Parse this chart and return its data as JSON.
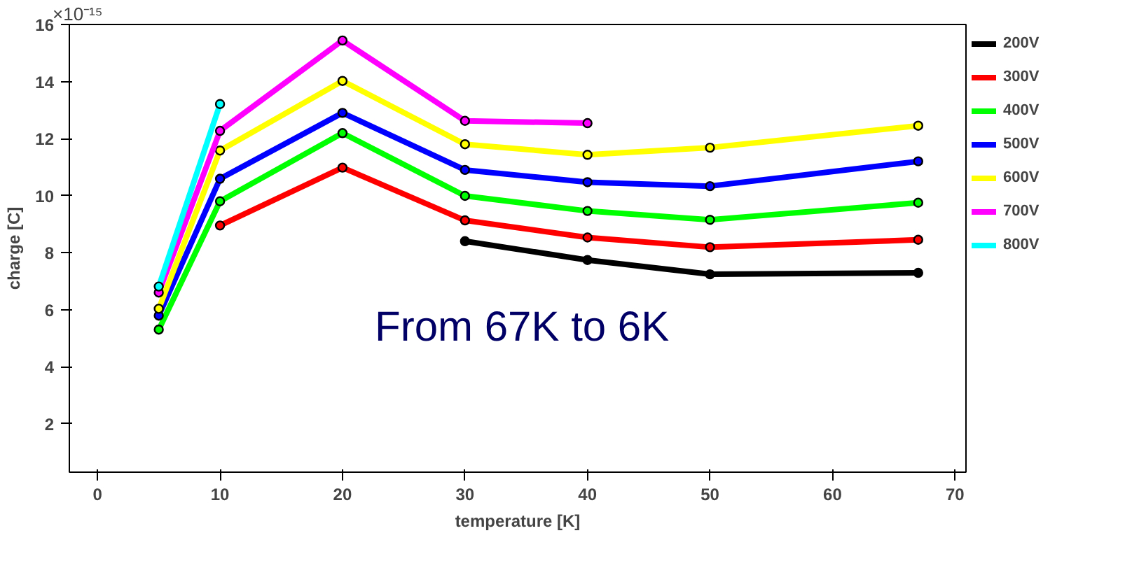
{
  "chart_data": {
    "type": "line",
    "xlabel": "temperature [K]",
    "ylabel": "charge [C]",
    "xlim": [
      -2.3,
      70.9
    ],
    "xticks": [
      0,
      10,
      20,
      30,
      40,
      50,
      60,
      70
    ],
    "ylim": [
      0.3,
      16
    ],
    "yticks": [
      2,
      4,
      6,
      8,
      10,
      12,
      14,
      16
    ],
    "series": [
      {
        "name": "200V",
        "color": "#000000",
        "x": [
          30,
          40,
          50,
          67
        ],
        "values": [
          8.4,
          7.74,
          7.24,
          7.29
        ]
      },
      {
        "name": "300V",
        "color": "#ff0000",
        "x": [
          10,
          20,
          30,
          40,
          50,
          67
        ],
        "values": [
          8.95,
          10.98,
          9.13,
          8.53,
          8.19,
          8.45
        ]
      },
      {
        "name": "400V",
        "color": "#00ff00",
        "x": [
          5,
          10,
          20,
          30,
          40,
          50,
          67
        ],
        "values": [
          5.3,
          9.8,
          12.19,
          9.99,
          9.46,
          9.15,
          9.75
        ]
      },
      {
        "name": "500V",
        "color": "#0000ff",
        "x": [
          5,
          10,
          20,
          30,
          40,
          50,
          67
        ],
        "values": [
          5.79,
          10.59,
          12.9,
          10.9,
          10.47,
          10.33,
          11.2
        ]
      },
      {
        "name": "600V",
        "color": "#ffff00",
        "x": [
          5,
          10,
          20,
          30,
          40,
          50,
          67
        ],
        "values": [
          6.03,
          11.58,
          14.02,
          11.8,
          11.43,
          11.68,
          12.45
        ]
      },
      {
        "name": "700V",
        "color": "#ff00ff",
        "x": [
          5,
          10,
          20,
          30,
          40
        ],
        "values": [
          6.6,
          12.27,
          15.44,
          12.62,
          12.54
        ]
      },
      {
        "name": "800V",
        "color": "#00ffff",
        "x": [
          5,
          10
        ],
        "values": [
          6.81,
          13.21
        ]
      }
    ],
    "annotations": [
      "×10⁻¹⁵",
      "From 67K to 6K"
    ],
    "marker": "circle",
    "line_style": "solid",
    "grid": false,
    "legend": "right"
  }
}
